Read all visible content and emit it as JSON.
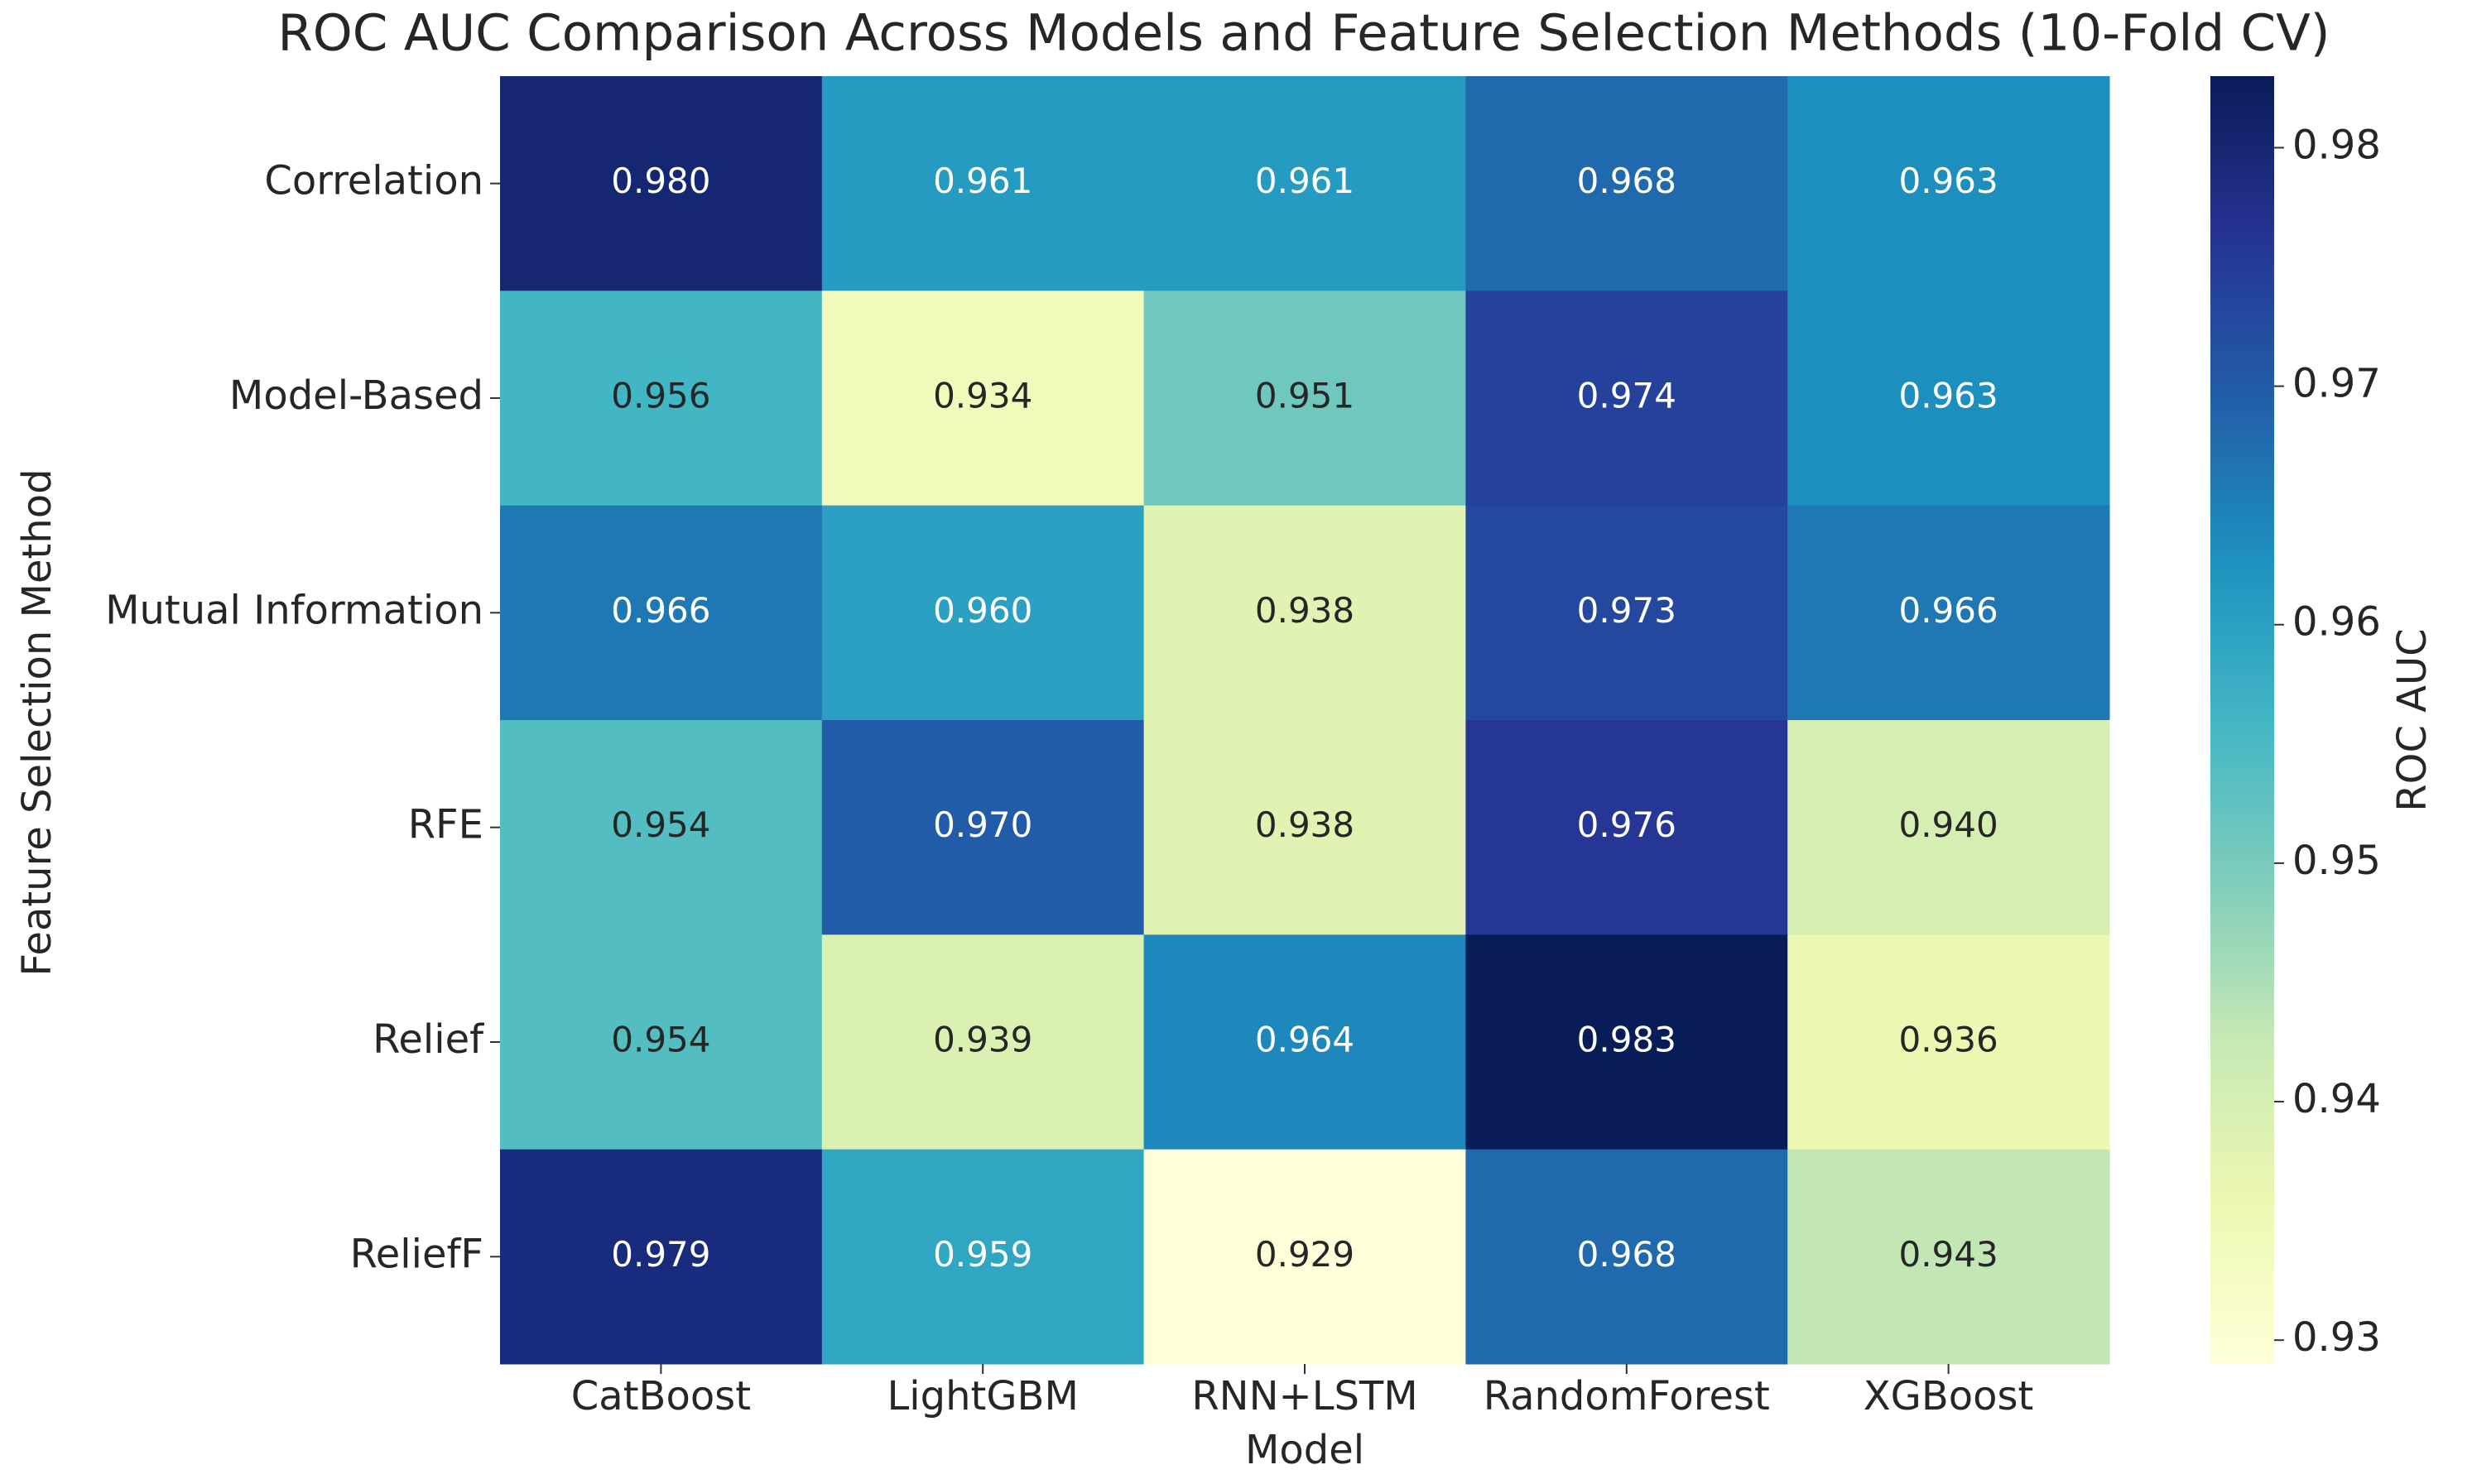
{
  "chart_data": {
    "type": "heatmap",
    "title": "ROC AUC Comparison Across Models and Feature Selection Methods (10-Fold CV)",
    "x_label": "Model",
    "y_label": "Feature Selection Method",
    "colorbar_label": "ROC AUC",
    "columns": [
      "CatBoost",
      "LightGBM",
      "RNN+LSTM",
      "RandomForest",
      "XGBoost"
    ],
    "rows": [
      "Correlation",
      "Model-Based",
      "Mutual Information",
      "RFE",
      "Relief",
      "ReliefF"
    ],
    "values": [
      [
        0.98,
        0.961,
        0.961,
        0.968,
        0.963
      ],
      [
        0.956,
        0.934,
        0.951,
        0.974,
        0.963
      ],
      [
        0.966,
        0.96,
        0.938,
        0.973,
        0.966
      ],
      [
        0.954,
        0.97,
        0.938,
        0.976,
        0.94
      ],
      [
        0.954,
        0.939,
        0.964,
        0.983,
        0.936
      ],
      [
        0.979,
        0.959,
        0.929,
        0.968,
        0.943
      ]
    ],
    "value_labels": [
      [
        "0.980",
        "0.961",
        "0.961",
        "0.968",
        "0.963"
      ],
      [
        "0.956",
        "0.934",
        "0.951",
        "0.974",
        "0.963"
      ],
      [
        "0.966",
        "0.960",
        "0.938",
        "0.973",
        "0.966"
      ],
      [
        "0.954",
        "0.970",
        "0.938",
        "0.976",
        "0.940"
      ],
      [
        "0.954",
        "0.939",
        "0.964",
        "0.983",
        "0.936"
      ],
      [
        "0.979",
        "0.959",
        "0.929",
        "0.968",
        "0.943"
      ]
    ],
    "clim": [
      0.929,
      0.983
    ],
    "cticks": [
      0.93,
      0.94,
      0.95,
      0.96,
      0.97,
      0.98
    ],
    "colormap": [
      "#ffffd9",
      "#edf8b1",
      "#c7e9b4",
      "#7fcdbb",
      "#41b6c4",
      "#1d91c0",
      "#225ea8",
      "#253494",
      "#081d58"
    ]
  }
}
